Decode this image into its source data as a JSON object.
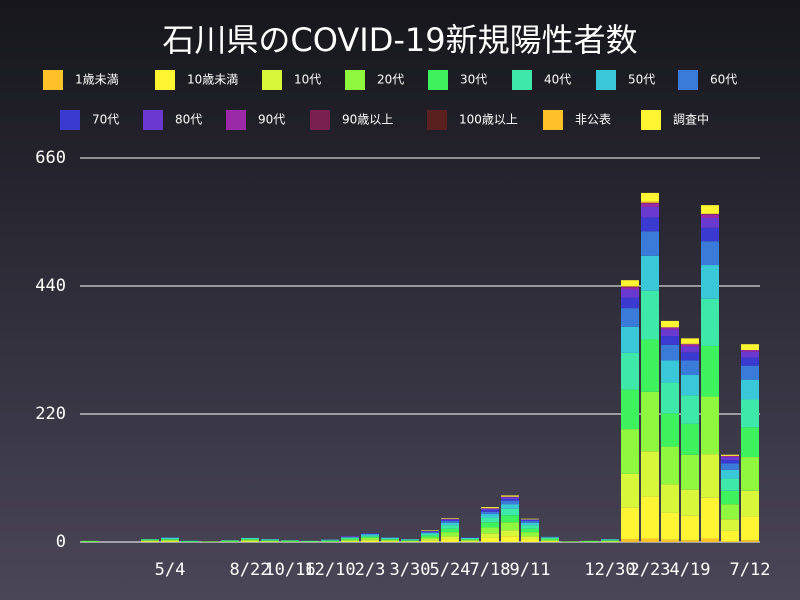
{
  "chart_data": {
    "type": "stacked_bar",
    "title": "石川県のCOVID-19新規陽性者数",
    "categories": [
      null,
      null,
      null,
      null,
      "5/4",
      null,
      null,
      null,
      "8/22",
      null,
      "10/16",
      null,
      "12/10",
      null,
      "2/3",
      null,
      "3/30",
      null,
      "5/24",
      null,
      "7/18",
      null,
      "9/11",
      null,
      null,
      null,
      "12/30",
      null,
      "2/23",
      null,
      "4/19",
      null,
      null,
      "7/12"
    ],
    "ylim": [
      0,
      660
    ],
    "yticks": [
      0,
      220,
      440,
      660
    ],
    "grid": true,
    "series": [
      {
        "name": "1歳未満",
        "color": "#ffc02a",
        "values": [
          0,
          0,
          0,
          0,
          0,
          0,
          0,
          0,
          0,
          0,
          0,
          0,
          0,
          0,
          0,
          0,
          0,
          0,
          0,
          0,
          0,
          0,
          0,
          0,
          0,
          0,
          0,
          5,
          6,
          4,
          3,
          6,
          1,
          3
        ]
      },
      {
        "name": "10歳未満",
        "color": "#fff533",
        "values": [
          0,
          0,
          0,
          1,
          1,
          0,
          0,
          0,
          1,
          0,
          0,
          0,
          0,
          1,
          2,
          1,
          0,
          2,
          5,
          1,
          7,
          10,
          5,
          1,
          0,
          0,
          0,
          54,
          72,
          46,
          42,
          70,
          18,
          41
        ]
      },
      {
        "name": "10代",
        "color": "#d9f73a",
        "values": [
          0,
          0,
          0,
          1,
          1,
          0,
          0,
          0,
          1,
          1,
          0,
          0,
          0,
          1,
          2,
          1,
          1,
          3,
          5,
          1,
          8,
          10,
          5,
          1,
          0,
          0,
          1,
          58,
          78,
          49,
          45,
          75,
          20,
          44
        ]
      },
      {
        "name": "20代",
        "color": "#8ef73e",
        "values": [
          1,
          0,
          0,
          1,
          2,
          0,
          1,
          1,
          2,
          1,
          1,
          1,
          1,
          2,
          3,
          2,
          1,
          3,
          7,
          2,
          10,
          14,
          7,
          2,
          1,
          1,
          1,
          77,
          102,
          65,
          60,
          99,
          26,
          58
        ]
      },
      {
        "name": "30代",
        "color": "#3ef25e",
        "values": [
          1,
          0,
          0,
          1,
          1,
          1,
          0,
          1,
          1,
          1,
          1,
          0,
          1,
          2,
          2,
          1,
          1,
          3,
          6,
          1,
          9,
          12,
          6,
          2,
          0,
          1,
          1,
          68,
          90,
          57,
          53,
          87,
          23,
          51
        ]
      },
      {
        "name": "40代",
        "color": "#3ee8a8",
        "values": [
          0,
          0,
          0,
          1,
          1,
          1,
          0,
          1,
          1,
          1,
          1,
          1,
          1,
          1,
          2,
          1,
          1,
          3,
          6,
          1,
          8,
          11,
          6,
          1,
          0,
          0,
          1,
          63,
          84,
          53,
          49,
          81,
          21,
          48
        ]
      },
      {
        "name": "50代",
        "color": "#38c8d8",
        "values": [
          0,
          0,
          0,
          0,
          1,
          0,
          0,
          0,
          1,
          1,
          0,
          0,
          1,
          1,
          2,
          1,
          1,
          2,
          4,
          1,
          6,
          8,
          4,
          1,
          0,
          0,
          1,
          45,
          60,
          38,
          35,
          58,
          15,
          34
        ]
      },
      {
        "name": "60代",
        "color": "#3a7ad8",
        "values": [
          0,
          0,
          0,
          0,
          1,
          0,
          0,
          0,
          0,
          0,
          0,
          0,
          0,
          1,
          1,
          1,
          0,
          1,
          3,
          0,
          4,
          6,
          3,
          1,
          0,
          0,
          0,
          32,
          42,
          27,
          25,
          41,
          11,
          24
        ]
      },
      {
        "name": "70代",
        "color": "#3a3ad0",
        "values": [
          0,
          0,
          0,
          0,
          0,
          0,
          0,
          0,
          0,
          0,
          0,
          0,
          0,
          0,
          1,
          0,
          0,
          1,
          2,
          1,
          3,
          3,
          2,
          0,
          0,
          0,
          0,
          18,
          24,
          15,
          14,
          23,
          6,
          14
        ]
      },
      {
        "name": "80代",
        "color": "#6a3ad0",
        "values": [
          0,
          0,
          0,
          0,
          0,
          0,
          0,
          0,
          0,
          0,
          0,
          0,
          0,
          1,
          0,
          0,
          0,
          1,
          1,
          0,
          2,
          3,
          1,
          0,
          0,
          0,
          0,
          14,
          18,
          11,
          10,
          17,
          5,
          10
        ]
      },
      {
        "name": "90代",
        "color": "#9a2aa8",
        "values": [
          0,
          0,
          0,
          0,
          0,
          0,
          0,
          0,
          0,
          0,
          0,
          0,
          0,
          0,
          0,
          0,
          0,
          0,
          1,
          0,
          1,
          1,
          0,
          0,
          0,
          0,
          0,
          4,
          6,
          4,
          4,
          6,
          2,
          3
        ]
      },
      {
        "name": "90歳以上",
        "color": "#7a2050",
        "values": [
          0,
          0,
          0,
          0,
          0,
          0,
          0,
          0,
          0,
          0,
          0,
          0,
          0,
          0,
          0,
          0,
          0,
          0,
          0,
          0,
          0,
          0,
          0,
          0,
          0,
          0,
          0,
          1,
          1,
          0,
          0,
          1,
          0,
          0
        ]
      },
      {
        "name": "100歳以上",
        "color": "#5a2020",
        "values": [
          0,
          0,
          0,
          0,
          0,
          0,
          0,
          0,
          0,
          0,
          0,
          0,
          0,
          0,
          0,
          0,
          0,
          0,
          0,
          0,
          0,
          0,
          0,
          0,
          0,
          0,
          0,
          0,
          0,
          0,
          0,
          0,
          0,
          0
        ]
      },
      {
        "name": "非公表",
        "color": "#ffc02a",
        "values": [
          0,
          0,
          0,
          0,
          0,
          0,
          0,
          0,
          0,
          0,
          0,
          0,
          0,
          0,
          0,
          0,
          0,
          0,
          0,
          0,
          0,
          0,
          0,
          0,
          0,
          0,
          0,
          1,
          2,
          0,
          1,
          0,
          0,
          0
        ]
      },
      {
        "name": "調査中",
        "color": "#fff533",
        "values": [
          0,
          0,
          0,
          0,
          0,
          0,
          0,
          0,
          0,
          0,
          0,
          0,
          0,
          0,
          0,
          0,
          0,
          1,
          1,
          0,
          2,
          2,
          1,
          0,
          0,
          0,
          0,
          10,
          15,
          11,
          9,
          15,
          2,
          10
        ]
      }
    ]
  }
}
